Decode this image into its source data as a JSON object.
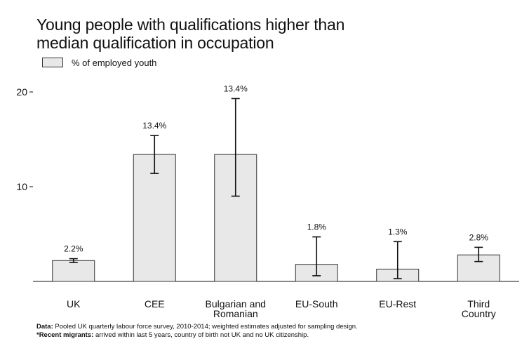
{
  "chart_data": {
    "type": "bar",
    "title_lines": [
      "Young people with qualifications higher than",
      "median qualification in occupation"
    ],
    "xlabel": "",
    "ylabel": "",
    "ylim": [
      0,
      20
    ],
    "yticks": [
      10,
      20
    ],
    "ytick_labels": [
      "10",
      "20"
    ],
    "grid": false,
    "legend_position": "top-left",
    "categories": [
      "UK",
      "CEE",
      "Bulgarian and Romanian",
      "EU-South",
      "EU-Rest",
      "Third Country"
    ],
    "category_label_lines": [
      [
        "UK"
      ],
      [
        "CEE"
      ],
      [
        "Bulgarian and",
        "Romanian"
      ],
      [
        "EU-South"
      ],
      [
        "EU-Rest"
      ],
      [
        "Third",
        "Country"
      ]
    ],
    "series": [
      {
        "name": "% of employed youth",
        "values": [
          2.2,
          13.4,
          13.4,
          1.8,
          1.3,
          2.8
        ],
        "data_labels": [
          "2.2%",
          "13.4%",
          "13.4%",
          "1.8%",
          "1.3%",
          "2.8%"
        ],
        "error_low": [
          2.0,
          11.4,
          9.0,
          0.6,
          0.3,
          2.1
        ],
        "error_high": [
          2.4,
          15.4,
          19.3,
          4.7,
          4.2,
          3.6
        ],
        "fill_color": "#e8e8e8",
        "edge_color": "#333333"
      }
    ],
    "footnote": {
      "data_prefix": "Data:",
      "data_text": " Pooled UK quarterly labour force survey, 2010-2014; weighted estimates adjusted for sampling design.",
      "recent_prefix": "*Recent migrants:",
      "recent_text": " arrived within last 5 years, country of birth not UK and no UK citizenship."
    }
  }
}
